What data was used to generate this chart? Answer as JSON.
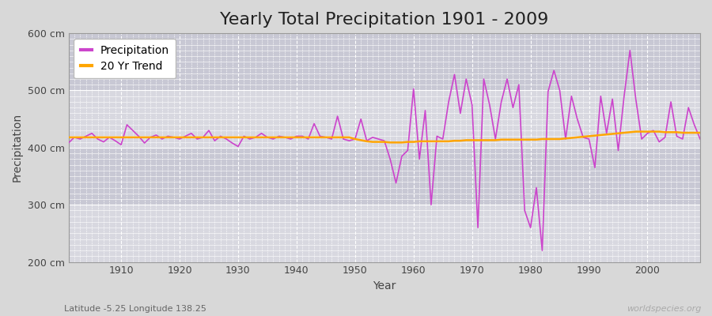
{
  "title": "Yearly Total Precipitation 1901 - 2009",
  "xlabel": "Year",
  "ylabel": "Precipitation",
  "subtitle": "Latitude -5.25 Longitude 138.25",
  "watermark": "worldspecies.org",
  "years": [
    1901,
    1902,
    1903,
    1904,
    1905,
    1906,
    1907,
    1908,
    1909,
    1910,
    1911,
    1912,
    1913,
    1914,
    1915,
    1916,
    1917,
    1918,
    1919,
    1920,
    1921,
    1922,
    1923,
    1924,
    1925,
    1926,
    1927,
    1928,
    1929,
    1930,
    1931,
    1932,
    1933,
    1934,
    1935,
    1936,
    1937,
    1938,
    1939,
    1940,
    1941,
    1942,
    1943,
    1944,
    1945,
    1946,
    1947,
    1948,
    1949,
    1950,
    1951,
    1952,
    1953,
    1954,
    1955,
    1956,
    1957,
    1958,
    1959,
    1960,
    1961,
    1962,
    1963,
    1964,
    1965,
    1966,
    1967,
    1968,
    1969,
    1970,
    1971,
    1972,
    1973,
    1974,
    1975,
    1976,
    1977,
    1978,
    1979,
    1980,
    1981,
    1982,
    1983,
    1984,
    1985,
    1986,
    1987,
    1988,
    1989,
    1990,
    1991,
    1992,
    1993,
    1994,
    1995,
    1996,
    1997,
    1998,
    1999,
    2000,
    2001,
    2002,
    2003,
    2004,
    2005,
    2006,
    2007,
    2008,
    2009
  ],
  "precip": [
    408,
    418,
    415,
    420,
    425,
    415,
    410,
    418,
    412,
    405,
    440,
    430,
    420,
    408,
    418,
    422,
    415,
    420,
    418,
    415,
    420,
    425,
    415,
    418,
    430,
    412,
    420,
    415,
    408,
    402,
    420,
    415,
    418,
    425,
    418,
    415,
    420,
    418,
    415,
    420,
    420,
    415,
    442,
    420,
    418,
    415,
    455,
    415,
    412,
    415,
    450,
    412,
    418,
    415,
    412,
    380,
    338,
    385,
    395,
    503,
    380,
    465,
    300,
    420,
    415,
    480,
    528,
    460,
    520,
    475,
    260,
    520,
    475,
    415,
    480,
    520,
    470,
    510,
    290,
    260,
    330,
    220,
    498,
    535,
    500,
    415,
    490,
    450,
    418,
    415,
    365,
    490,
    425,
    485,
    395,
    490,
    570,
    485,
    415,
    425,
    430,
    410,
    418,
    480,
    420,
    415,
    470,
    440,
    415
  ],
  "trend": [
    418,
    418,
    418,
    418,
    418,
    418,
    418,
    418,
    418,
    418,
    418,
    418,
    418,
    418,
    418,
    418,
    418,
    418,
    418,
    418,
    418,
    418,
    418,
    418,
    418,
    418,
    418,
    418,
    418,
    418,
    418,
    418,
    418,
    418,
    418,
    418,
    418,
    418,
    418,
    418,
    418,
    418,
    418,
    418,
    418,
    418,
    418,
    418,
    418,
    415,
    413,
    411,
    410,
    410,
    410,
    409,
    409,
    409,
    410,
    410,
    411,
    411,
    411,
    411,
    411,
    411,
    412,
    412,
    413,
    413,
    413,
    413,
    413,
    413,
    414,
    414,
    414,
    414,
    414,
    414,
    414,
    415,
    415,
    415,
    415,
    416,
    417,
    418,
    419,
    420,
    421,
    422,
    423,
    424,
    425,
    426,
    427,
    428,
    428,
    428,
    428,
    428,
    427,
    427,
    427,
    426,
    426,
    426,
    426
  ],
  "precip_color": "#cc44cc",
  "trend_color": "#ffa500",
  "bg_color": "#d8d8d8",
  "plot_bg_upper": "#d0d0d8",
  "plot_bg_lower": "#c8c8d0",
  "band_bg": "#e0e0e8",
  "grid_color": "#ffffff",
  "ylim": [
    200,
    600
  ],
  "yticks": [
    200,
    300,
    400,
    500,
    600
  ],
  "ytick_labels": [
    "200 cm",
    "300 cm",
    "400 cm",
    "500 cm",
    "600 cm"
  ],
  "xticks": [
    1910,
    1920,
    1930,
    1940,
    1950,
    1960,
    1970,
    1980,
    1990,
    2000
  ],
  "title_fontsize": 16,
  "label_fontsize": 10,
  "tick_fontsize": 9
}
